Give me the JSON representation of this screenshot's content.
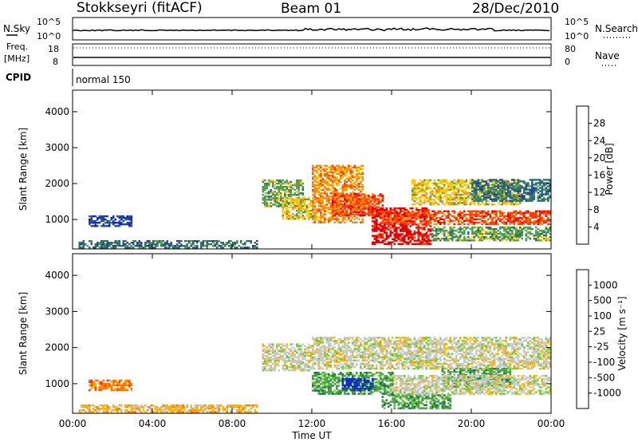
{
  "header": {
    "station": "Stokkseyri (fitACF)",
    "beam": "Beam 01",
    "date": "28/Dec/2010"
  },
  "top_panels": {
    "nsky_label": "N.Sky",
    "nsky_ticks": [
      "10^5",
      "10^0"
    ],
    "nsearch_label": "N.Search",
    "nsearch_ticks": [
      "10^5",
      "10^0"
    ],
    "freq_label_line1": "Freq.",
    "freq_label_line2": "[MHz]",
    "freq_ticks": [
      "18",
      "8"
    ],
    "nave_label": "Nave",
    "nave_ticks": [
      "80",
      "0"
    ],
    "cpid_label": "CPID",
    "cpid_text": "normal 150"
  },
  "x_axis": {
    "ticks": [
      "00:00",
      "04:00",
      "08:00",
      "12:00",
      "16:00",
      "20:00",
      "00:00"
    ],
    "label": "Time UT"
  },
  "chart_data": [
    {
      "type": "heatmap",
      "name": "power",
      "ylabel": "Slant Range [km]",
      "yticks": [
        "4000",
        "3000",
        "2000",
        "1000"
      ],
      "ylim": [
        180,
        4600
      ],
      "xlim_hours": [
        0,
        24
      ],
      "colorbar_label": "Power [dB]",
      "colorbar_ticks": [
        "28",
        "24",
        "20",
        "16",
        "12",
        "8",
        "4"
      ],
      "colorbar_colors": [
        "#e00000",
        "#ff4000",
        "#ff8c00",
        "#ffc800",
        "#50a050",
        "#2e6e6e",
        "#284090",
        "#0010ff"
      ],
      "regions": [
        {
          "t0": 0.3,
          "t1": 9.2,
          "r0": 200,
          "r1": 420,
          "level": 2
        },
        {
          "t0": 0.8,
          "t1": 3.0,
          "r0": 800,
          "r1": 1100,
          "level": 1
        },
        {
          "t0": 9.5,
          "t1": 11.5,
          "r0": 1350,
          "r1": 2100,
          "level": 3
        },
        {
          "t0": 10.5,
          "t1": 12.0,
          "r0": 1000,
          "r1": 1600,
          "level": 4
        },
        {
          "t0": 12.0,
          "t1": 14.5,
          "r0": 900,
          "r1": 2500,
          "level": 5
        },
        {
          "t0": 13.0,
          "t1": 15.5,
          "r0": 1100,
          "r1": 1700,
          "level": 6
        },
        {
          "t0": 15.0,
          "t1": 18.0,
          "r0": 300,
          "r1": 1300,
          "level": 7
        },
        {
          "t0": 15.5,
          "t1": 24.0,
          "r0": 850,
          "r1": 1250,
          "level": 6
        },
        {
          "t0": 17.0,
          "t1": 22.5,
          "r0": 1400,
          "r1": 2100,
          "level": 4
        },
        {
          "t0": 20.0,
          "t1": 24.0,
          "r0": 1500,
          "r1": 2100,
          "level": 2
        },
        {
          "t0": 18.0,
          "t1": 24.0,
          "r0": 400,
          "r1": 800,
          "level": 3
        }
      ]
    },
    {
      "type": "heatmap",
      "name": "velocity",
      "ylabel": "Slant Range [km]",
      "yticks": [
        "4000",
        "3000",
        "2000",
        "1000"
      ],
      "ylim": [
        180,
        4600
      ],
      "xlim_hours": [
        0,
        24
      ],
      "colorbar_label": "Velocity [m s⁻¹]",
      "colorbar_ticks": [
        "1000",
        "500",
        "100",
        "25",
        "-25",
        "-100",
        "-500",
        "-1000"
      ],
      "colorbar_colors": [
        "#1030c0",
        "#1e6e46",
        "#46a046",
        "#6ccc3c",
        "#c8c8c8",
        "#ffb000",
        "#ff7800",
        "#ff3000",
        "#e00000"
      ],
      "regions": [
        {
          "t0": 0.3,
          "t1": 9.2,
          "r0": 200,
          "r1": 420,
          "level": 3
        },
        {
          "t0": 0.8,
          "t1": 3.0,
          "r0": 800,
          "r1": 1100,
          "level": 2
        },
        {
          "t0": 9.5,
          "t1": 12.0,
          "r0": 1350,
          "r1": 2100,
          "level": 4
        },
        {
          "t0": 12.0,
          "t1": 24.0,
          "r0": 1400,
          "r1": 2300,
          "level": 4
        },
        {
          "t0": 12.0,
          "t1": 16.0,
          "r0": 700,
          "r1": 1300,
          "level": 6
        },
        {
          "t0": 13.5,
          "t1": 15.0,
          "r0": 800,
          "r1": 1150,
          "level": 8
        },
        {
          "t0": 15.5,
          "t1": 19.0,
          "r0": 300,
          "r1": 700,
          "level": 6
        },
        {
          "t0": 18.5,
          "t1": 22.0,
          "r0": 900,
          "r1": 1400,
          "level": 6
        },
        {
          "t0": 16.0,
          "t1": 24.0,
          "r0": 700,
          "r1": 1200,
          "level": 4
        }
      ]
    }
  ]
}
